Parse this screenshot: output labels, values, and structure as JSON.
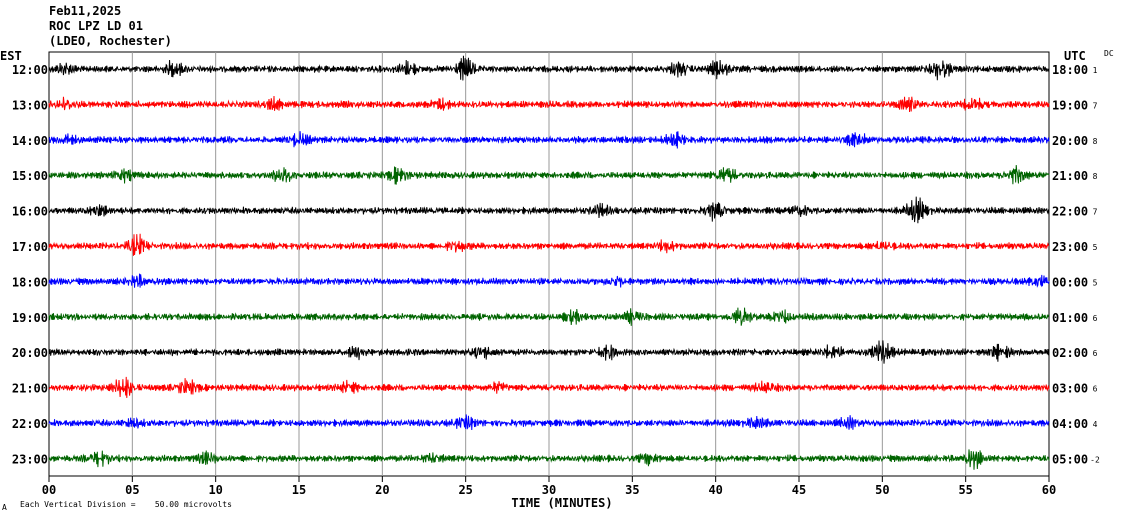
{
  "header": {
    "date": "Feb11,2025",
    "station": "ROC LPZ LD 01",
    "network": "(LDEO, Rochester)"
  },
  "left_zone": "EST",
  "right_zone": "UTC",
  "dc_label": "DC",
  "x_axis_title": "TIME (MINUTES)",
  "scale_note": "Each Vertical Division =    50.00 microvolts",
  "corner_mark": "A",
  "colors": {
    "black": "#000000",
    "red": "#ff0000",
    "blue": "#0000ff",
    "green": "#006400",
    "grid": "#999999"
  },
  "chart_data": {
    "type": "line",
    "title": "ROC LPZ LD 01",
    "xlabel": "TIME (MINUTES)",
    "ylabel": "",
    "xlim": [
      0,
      60
    ],
    "x_ticks": [
      "00",
      "05",
      "10",
      "15",
      "20",
      "25",
      "30",
      "35",
      "40",
      "45",
      "50",
      "55",
      "60"
    ],
    "grid": true,
    "rows": [
      {
        "est": "12:00",
        "utc": "18:00",
        "dc": "1",
        "color": "black",
        "bursts": [
          {
            "t": 1,
            "a": 1.4
          },
          {
            "t": 7.5,
            "a": 1.6
          },
          {
            "t": 21.5,
            "a": 1.5
          },
          {
            "t": 25,
            "a": 2.2
          },
          {
            "t": 37.8,
            "a": 1.6
          },
          {
            "t": 40.2,
            "a": 1.8
          },
          {
            "t": 53.5,
            "a": 2.0
          }
        ]
      },
      {
        "est": "13:00",
        "utc": "19:00",
        "dc": "7",
        "color": "red",
        "bursts": [
          {
            "t": 1,
            "a": 1.4
          },
          {
            "t": 13.5,
            "a": 1.3
          },
          {
            "t": 23.5,
            "a": 1.3
          },
          {
            "t": 51.5,
            "a": 1.6
          },
          {
            "t": 55.5,
            "a": 1.5
          }
        ]
      },
      {
        "est": "14:00",
        "utc": "20:00",
        "dc": "8",
        "color": "blue",
        "bursts": [
          {
            "t": 1,
            "a": 1.3
          },
          {
            "t": 15,
            "a": 1.4
          },
          {
            "t": 37.5,
            "a": 1.5
          },
          {
            "t": 48.5,
            "a": 1.4
          }
        ]
      },
      {
        "est": "15:00",
        "utc": "21:00",
        "dc": "8",
        "color": "green",
        "bursts": [
          {
            "t": 4.5,
            "a": 1.3
          },
          {
            "t": 14,
            "a": 1.8
          },
          {
            "t": 21,
            "a": 1.6
          },
          {
            "t": 40.6,
            "a": 1.9
          },
          {
            "t": 58,
            "a": 1.9
          }
        ]
      },
      {
        "est": "16:00",
        "utc": "22:00",
        "dc": "7",
        "color": "black",
        "bursts": [
          {
            "t": 3,
            "a": 1.3
          },
          {
            "t": 33,
            "a": 1.4
          },
          {
            "t": 40,
            "a": 1.8
          },
          {
            "t": 45,
            "a": 1.3
          },
          {
            "t": 52,
            "a": 2.3
          }
        ]
      },
      {
        "est": "17:00",
        "utc": "23:00",
        "dc": "5",
        "color": "red",
        "bursts": [
          {
            "t": 5.3,
            "a": 2.0
          },
          {
            "t": 24.5,
            "a": 1.3
          },
          {
            "t": 37,
            "a": 1.3
          },
          {
            "t": 50,
            "a": 1.2
          }
        ]
      },
      {
        "est": "18:00",
        "utc": "00:00",
        "dc": "5",
        "color": "blue",
        "bursts": [
          {
            "t": 5.3,
            "a": 1.3
          },
          {
            "t": 34,
            "a": 1.2
          },
          {
            "t": 59.5,
            "a": 1.3
          }
        ]
      },
      {
        "est": "19:00",
        "utc": "01:00",
        "dc": "6",
        "color": "green",
        "bursts": [
          {
            "t": 31.5,
            "a": 1.4
          },
          {
            "t": 35,
            "a": 1.4
          },
          {
            "t": 41.5,
            "a": 1.9
          },
          {
            "t": 44,
            "a": 1.3
          }
        ]
      },
      {
        "est": "20:00",
        "utc": "02:00",
        "dc": "6",
        "color": "black",
        "bursts": [
          {
            "t": 18.5,
            "a": 1.3
          },
          {
            "t": 26,
            "a": 1.4
          },
          {
            "t": 33.5,
            "a": 1.5
          },
          {
            "t": 47,
            "a": 1.5
          },
          {
            "t": 50,
            "a": 2.2
          },
          {
            "t": 57,
            "a": 1.5
          }
        ]
      },
      {
        "est": "21:00",
        "utc": "03:00",
        "dc": "6",
        "color": "red",
        "bursts": [
          {
            "t": 4.5,
            "a": 2.2
          },
          {
            "t": 8.3,
            "a": 1.6
          },
          {
            "t": 18,
            "a": 1.4
          },
          {
            "t": 27,
            "a": 1.3
          },
          {
            "t": 43,
            "a": 1.3
          }
        ]
      },
      {
        "est": "22:00",
        "utc": "04:00",
        "dc": "4",
        "color": "blue",
        "bursts": [
          {
            "t": 5,
            "a": 1.2
          },
          {
            "t": 25,
            "a": 1.4
          },
          {
            "t": 42.5,
            "a": 1.5
          },
          {
            "t": 48,
            "a": 1.3
          }
        ]
      },
      {
        "est": "23:00",
        "utc": "05:00",
        "dc": "-2",
        "color": "green",
        "bursts": [
          {
            "t": 3,
            "a": 1.6
          },
          {
            "t": 9.5,
            "a": 1.3
          },
          {
            "t": 23,
            "a": 1.2
          },
          {
            "t": 36,
            "a": 1.3
          },
          {
            "t": 55.5,
            "a": 1.8
          }
        ]
      }
    ]
  }
}
